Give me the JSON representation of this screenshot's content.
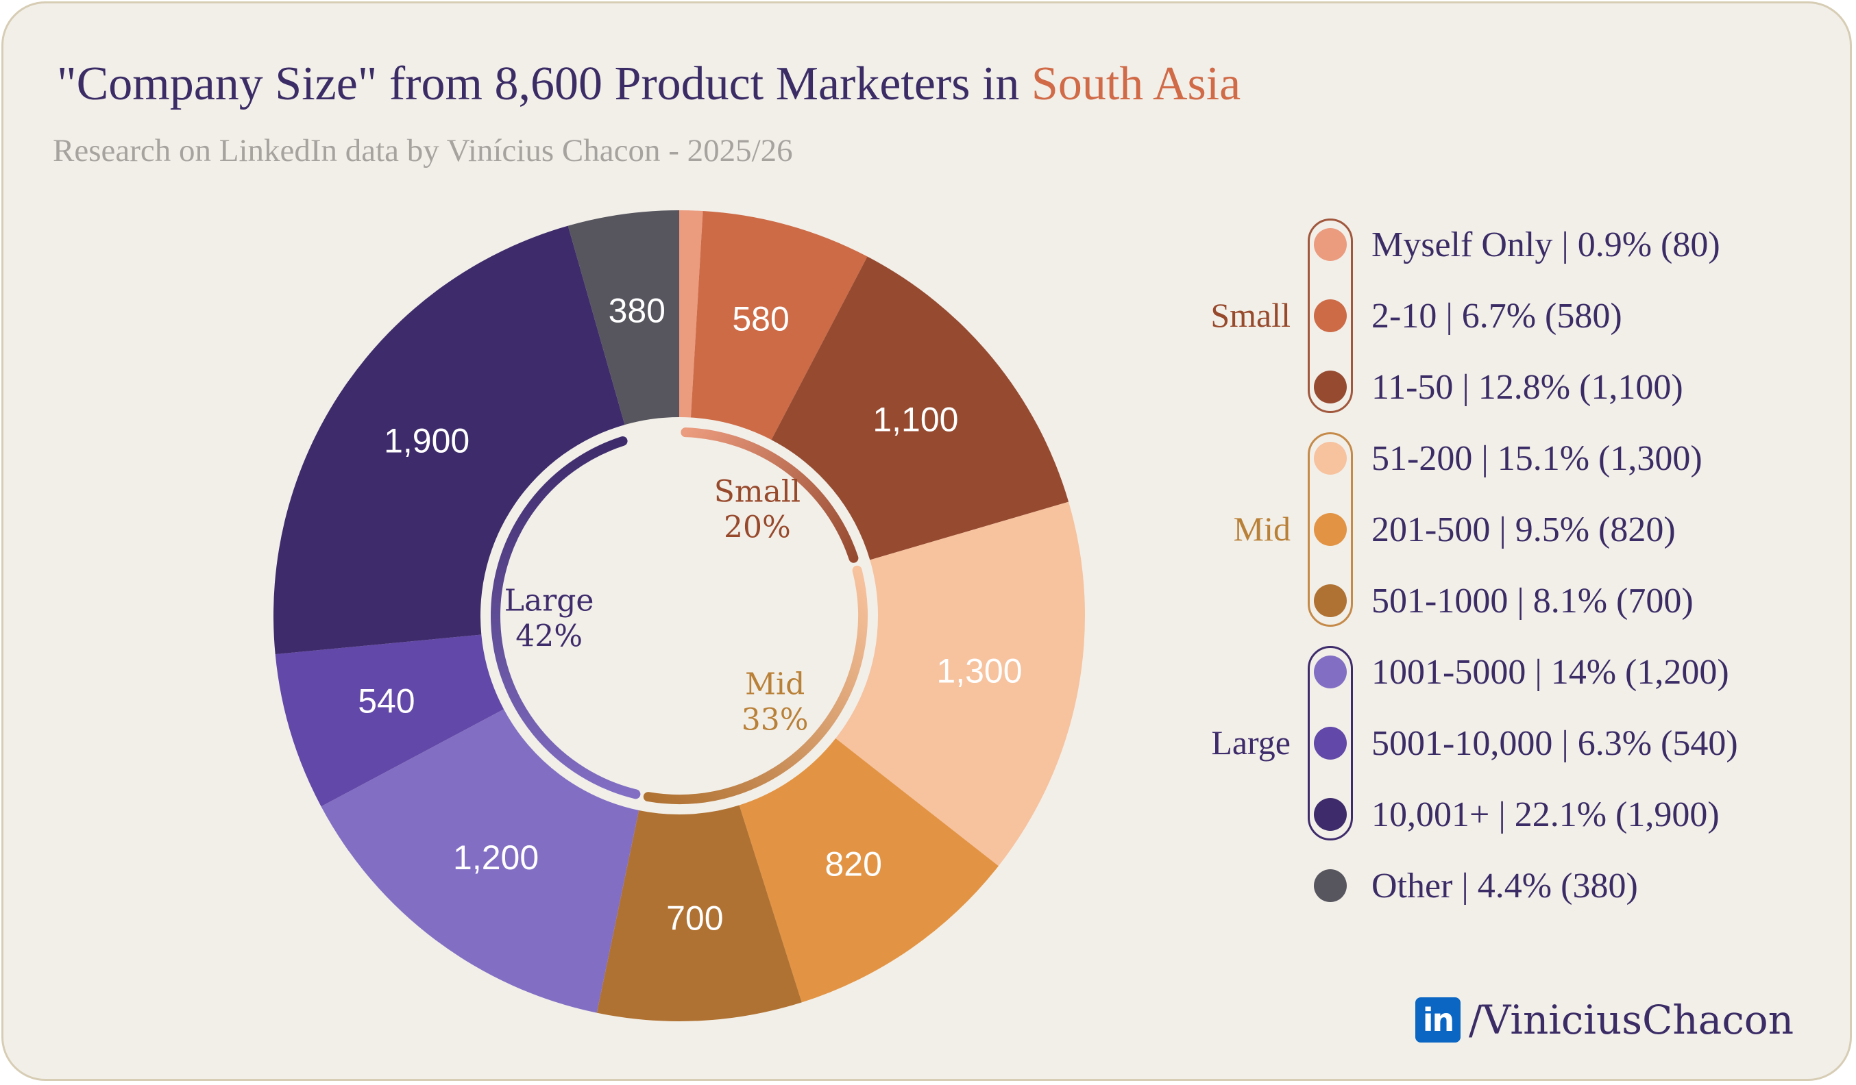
{
  "header": {
    "title_prefix": "\"Company Size\" from 8,600 Product Marketers in ",
    "title_highlight": "South Asia",
    "subtitle": "Research on LinkedIn data by Vinícius Chacon - 2025/26"
  },
  "chart_data": {
    "type": "pie",
    "variant": "donut",
    "title": "\"Company Size\" from 8,600 Product Marketers in South Asia",
    "subtitle": "Research on LinkedIn data by Vinícius Chacon - 2025/26",
    "total": 8600,
    "slices": [
      {
        "name": "Myself Only",
        "value": 80,
        "percent": "0.9%",
        "label": "",
        "group": "Small",
        "color": "#eb9b7e",
        "legend": "Myself Only | 0.9% (80)"
      },
      {
        "name": "2-10",
        "value": 580,
        "percent": "6.7%",
        "label": "580",
        "group": "Small",
        "color": "#cd6b47",
        "legend": "2-10 | 6.7% (580)"
      },
      {
        "name": "11-50",
        "value": 1100,
        "percent": "12.8%",
        "label": "1,100",
        "group": "Small",
        "color": "#964b31",
        "legend": "11-50 | 12.8% (1,100)"
      },
      {
        "name": "51-200",
        "value": 1300,
        "percent": "15.1%",
        "label": "1,300",
        "group": "Mid",
        "color": "#f7c29e",
        "legend": "51-200 | 15.1% (1,300)"
      },
      {
        "name": "201-500",
        "value": 820,
        "percent": "9.5%",
        "label": "820",
        "group": "Mid",
        "color": "#e29444",
        "legend": "201-500 | 9.5% (820)"
      },
      {
        "name": "501-1000",
        "value": 700,
        "percent": "8.1%",
        "label": "700",
        "group": "Mid",
        "color": "#b07232",
        "legend": "501-1000 | 8.1% (700)"
      },
      {
        "name": "1001-5000",
        "value": 1200,
        "percent": "14%",
        "label": "1,200",
        "group": "Large",
        "color": "#826fc4",
        "legend": "1001-5000 | 14% (1,200)"
      },
      {
        "name": "5001-10,000",
        "value": 540,
        "percent": "6.3%",
        "label": "540",
        "group": "Large",
        "color": "#6248a8",
        "legend": "5001-10,000 | 6.3% (540)"
      },
      {
        "name": "10,001+",
        "value": 1900,
        "percent": "22.1%",
        "label": "1,900",
        "group": "Large",
        "color": "#3e2b6b",
        "legend": "10,001+ | 22.1% (1,900)"
      },
      {
        "name": "Other",
        "value": 380,
        "percent": "4.4%",
        "label": "380",
        "group": "Other",
        "color": "#57555e",
        "legend": "Other | 4.4% (380)"
      }
    ],
    "groups": [
      {
        "name": "Small",
        "percent": "20%",
        "color": "#97492c",
        "pill_color": "#a0573c",
        "arc_start_color": "#eb9b7e",
        "arc_end_color": "#964b31",
        "slice_indices": [
          0,
          1,
          2
        ]
      },
      {
        "name": "Mid",
        "percent": "33%",
        "color": "#b98038",
        "pill_color": "#c58a48",
        "arc_start_color": "#f7c29e",
        "arc_end_color": "#b07232",
        "slice_indices": [
          3,
          4,
          5
        ]
      },
      {
        "name": "Large",
        "percent": "42%",
        "color": "#3e2b6b",
        "pill_color": "#3e2b6b",
        "arc_start_color": "#826fc4",
        "arc_end_color": "#3e2b6b",
        "slice_indices": [
          6,
          7,
          8
        ]
      }
    ]
  },
  "footer": {
    "logo_text": "in",
    "handle": "/ViniciusChacon"
  },
  "colors": {
    "background": "#f2efe9",
    "title": "#3b2c66",
    "accent": "#d06a47",
    "subtitle": "#a6a39f",
    "linkedin": "#0a66c2"
  }
}
